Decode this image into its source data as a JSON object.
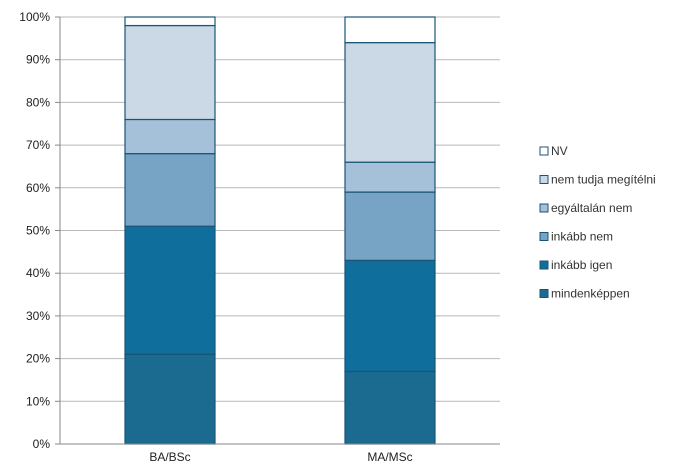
{
  "chart_data": {
    "type": "bar",
    "stacked": true,
    "categories": [
      "BA/BSc",
      "MA/MSc"
    ],
    "series": [
      {
        "name": "mindenképpen",
        "values": [
          21,
          17
        ],
        "color": "#1a6b8f"
      },
      {
        "name": "inkább igen",
        "values": [
          30,
          26
        ],
        "color": "#0f6e9c"
      },
      {
        "name": "inkább nem",
        "values": [
          17,
          16
        ],
        "color": "#77a3c4"
      },
      {
        "name": "egyáltalán nem",
        "values": [
          8,
          7
        ],
        "color": "#a5c0d9"
      },
      {
        "name": "nem tudja megítélni",
        "values": [
          22,
          28
        ],
        "color": "#cbd9e7"
      },
      {
        "name": "NV",
        "values": [
          2,
          6
        ],
        "color": "#ffffff"
      }
    ],
    "ylim": [
      0,
      100
    ],
    "yticks": [
      "0%",
      "10%",
      "20%",
      "30%",
      "40%",
      "50%",
      "60%",
      "70%",
      "80%",
      "90%",
      "100%"
    ],
    "grid": true,
    "legend_position": "right",
    "legend_order": [
      "NV",
      "nem tudja megítélni",
      "egyáltalán nem",
      "inkább nem",
      "inkább igen",
      "mindenképpen"
    ]
  }
}
